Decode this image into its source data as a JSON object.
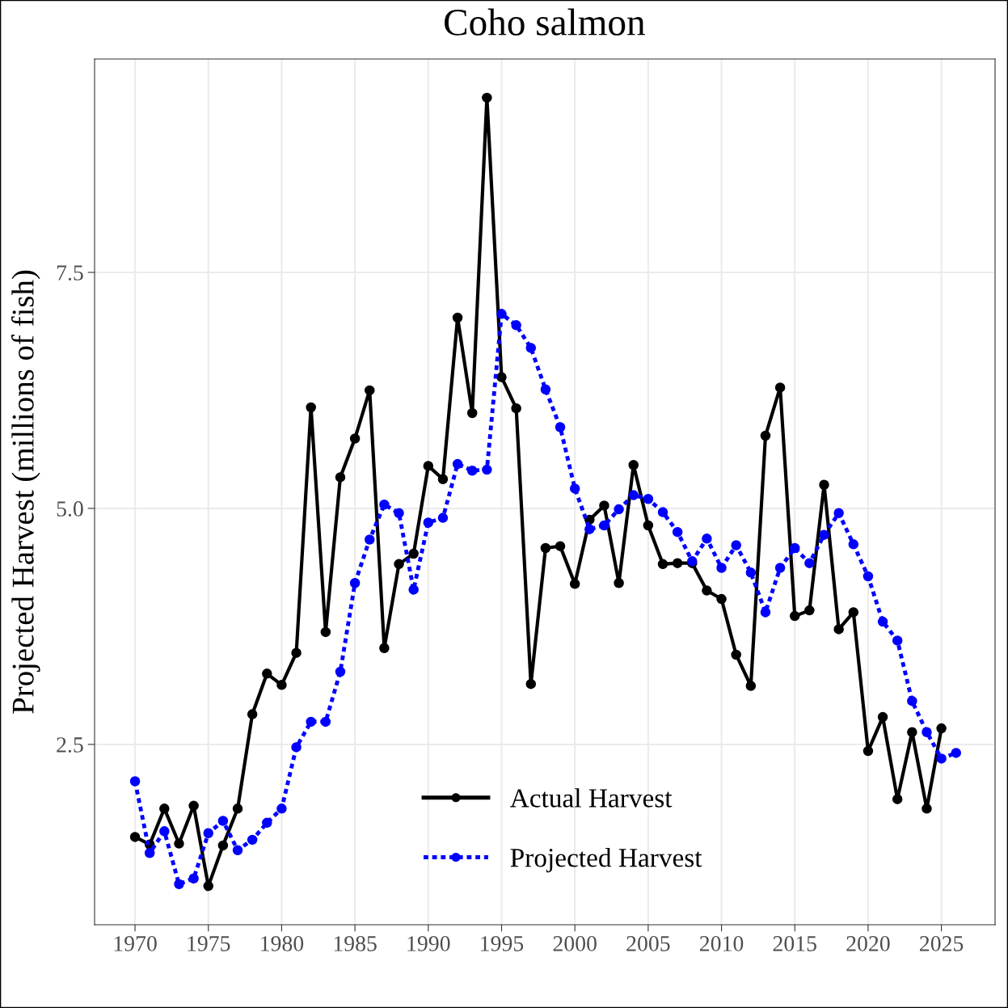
{
  "chart_data": {
    "type": "line",
    "title": "Coho salmon",
    "ylabel": "Projected Harvest (millions of fish)",
    "xlim": [
      1967.24,
      2028.66
    ],
    "xticks": [
      1970,
      1975,
      1980,
      1985,
      1990,
      1995,
      2000,
      2005,
      2010,
      2015,
      2020,
      2025
    ],
    "ylim": [
      0.59,
      9.76
    ],
    "yticks": [
      2.5,
      {
        "value": 5.0,
        "label": "5.0"
      },
      7.5
    ],
    "grid": true,
    "legend": "bottom",
    "marker": "circle",
    "series": [
      {
        "name": "Actual Harvest",
        "color": "#000000",
        "line_style": "solid",
        "x": [
          1970,
          1971,
          1972,
          1973,
          1974,
          1975,
          1976,
          1977,
          1978,
          1979,
          1980,
          1981,
          1982,
          1983,
          1984,
          1985,
          1986,
          1987,
          1988,
          1989,
          1990,
          1991,
          1992,
          1993,
          1994,
          1995,
          1996,
          1997,
          1998,
          1999,
          2000,
          2001,
          2002,
          2003,
          2004,
          2005,
          2006,
          2007,
          2008,
          2009,
          2010,
          2011,
          2012,
          2013,
          2014,
          2015,
          2016,
          2017,
          2018,
          2019,
          2020,
          2021,
          2022,
          2023,
          2024,
          2025
        ],
        "values": [
          1.52,
          1.44,
          1.82,
          1.45,
          1.85,
          1.0,
          1.43,
          1.82,
          2.82,
          3.25,
          3.13,
          3.47,
          6.07,
          3.69,
          5.33,
          5.74,
          6.25,
          3.52,
          4.41,
          4.52,
          5.45,
          5.31,
          7.02,
          6.01,
          9.35,
          6.39,
          6.06,
          3.14,
          4.58,
          4.6,
          4.2,
          4.88,
          5.03,
          4.21,
          5.46,
          4.82,
          4.41,
          4.42,
          4.42,
          4.13,
          4.04,
          3.45,
          3.12,
          5.77,
          6.28,
          3.86,
          3.92,
          5.25,
          3.72,
          3.9,
          2.43,
          2.79,
          1.92,
          2.63,
          1.82,
          2.67
        ]
      },
      {
        "name": "Projected Harvest",
        "color": "#0000ff",
        "line_style": "dotted",
        "x": [
          1970,
          1971,
          1972,
          1973,
          1974,
          1975,
          1976,
          1977,
          1978,
          1979,
          1980,
          1981,
          1982,
          1983,
          1984,
          1985,
          1986,
          1987,
          1988,
          1989,
          1990,
          1991,
          1992,
          1993,
          1994,
          1995,
          1996,
          1997,
          1998,
          1999,
          2000,
          2001,
          2002,
          2003,
          2004,
          2005,
          2006,
          2007,
          2008,
          2009,
          2010,
          2011,
          2012,
          2013,
          2014,
          2015,
          2016,
          2017,
          2018,
          2019,
          2020,
          2021,
          2022,
          2023,
          2024,
          2025,
          2026
        ],
        "values": [
          2.11,
          1.35,
          1.58,
          1.02,
          1.08,
          1.56,
          1.69,
          1.38,
          1.49,
          1.67,
          1.82,
          2.47,
          2.74,
          2.74,
          3.27,
          4.21,
          4.67,
          5.04,
          4.95,
          4.14,
          4.85,
          4.9,
          5.47,
          5.4,
          5.41,
          7.06,
          6.94,
          6.7,
          6.26,
          5.86,
          5.21,
          4.78,
          4.82,
          4.99,
          5.14,
          5.1,
          4.96,
          4.75,
          4.44,
          4.68,
          4.37,
          4.61,
          4.32,
          3.9,
          4.37,
          4.58,
          4.42,
          4.72,
          4.95,
          4.62,
          4.28,
          3.8,
          3.6,
          2.96,
          2.63,
          2.35,
          2.41
        ]
      }
    ]
  }
}
